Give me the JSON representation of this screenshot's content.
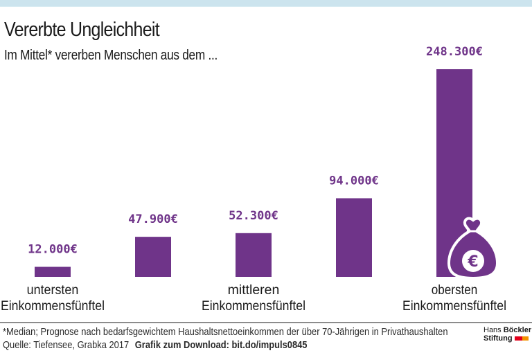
{
  "header": {
    "title": "Vererbte Ungleichheit",
    "subtitle": "Im Mittel* vererben Menschen aus dem ..."
  },
  "colors": {
    "bar": "#6f3489",
    "label": "#6f3489",
    "top_band": "#cce4ee",
    "logo_red": "#e3001b",
    "logo_orange": "#f39200"
  },
  "chart_data": {
    "type": "bar",
    "title": "Vererbte Ungleichheit",
    "subtitle": "Im Mittel* vererben Menschen aus dem ...",
    "categories": [
      "untersten Einkommensfünftel",
      "",
      "mittleren Einkommensfünftel",
      "",
      "obersten Einkommensfünftel"
    ],
    "category_lines": [
      [
        "untersten",
        "Einkommensfünftel"
      ],
      [],
      [
        "mittleren",
        "Einkommensfünftel"
      ],
      [],
      [
        "obersten",
        "Einkommensfünftel"
      ]
    ],
    "values": [
      12000,
      47900,
      52300,
      94000,
      248300
    ],
    "value_labels": [
      "12.000€",
      "47.900€",
      "52.300€",
      "94.000€",
      "248.300€"
    ],
    "unit": "€",
    "xlabel": "",
    "ylabel": "",
    "ylim": [
      0,
      248300
    ],
    "grid": false,
    "legend": "none",
    "annotation_icon": "money-bag-euro-icon"
  },
  "footer": {
    "footnote": "*Median; Prognose nach bedarfsgewichtem Haushaltsnettoeinkommen der über 70-Jährigen in Privathaushalten",
    "source": "Quelle: Tiefensee, Grabka 2017",
    "download": "Grafik zum Download: bit.do/impuls0845"
  },
  "logo": {
    "line1_light": "Hans",
    "line1_bold": "Böckler",
    "line2_bold": "Stiftung"
  }
}
